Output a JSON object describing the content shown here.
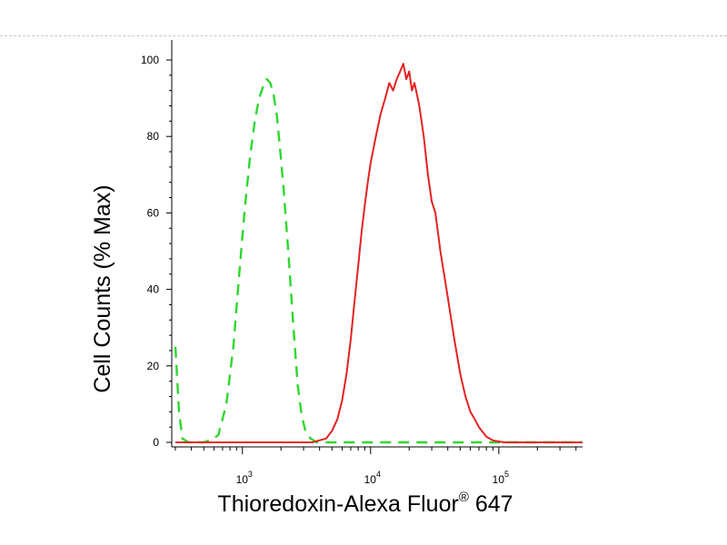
{
  "chart_data": {
    "type": "line",
    "title": "",
    "xlabel": "Thioredoxin-Alexa Fluor",
    "xlabel_superscript": "®",
    "xlabel_suffix": " 647",
    "ylabel": "Cell Counts (% Max)",
    "xscale": "log",
    "xlim": [
      300,
      450000
    ],
    "ylim": [
      0,
      100
    ],
    "x_major_ticks": [
      {
        "value": 1000,
        "base": "10",
        "exp": "3"
      },
      {
        "value": 10000,
        "base": "10",
        "exp": "4"
      },
      {
        "value": 100000,
        "base": "10",
        "exp": "5"
      }
    ],
    "y_ticks": [
      0,
      20,
      40,
      60,
      80,
      100
    ],
    "grid": false,
    "legend": "none",
    "series": [
      {
        "color": "#2fd72f",
        "style": "dashed",
        "points": [
          [
            300,
            25
          ],
          [
            320,
            8
          ],
          [
            340,
            1
          ],
          [
            380,
            0
          ],
          [
            500,
            0
          ],
          [
            600,
            1
          ],
          [
            650,
            2
          ],
          [
            750,
            10
          ],
          [
            850,
            25
          ],
          [
            950,
            45
          ],
          [
            1050,
            62
          ],
          [
            1150,
            75
          ],
          [
            1250,
            84
          ],
          [
            1350,
            90
          ],
          [
            1450,
            93
          ],
          [
            1550,
            95
          ],
          [
            1650,
            94
          ],
          [
            1750,
            91
          ],
          [
            1850,
            86
          ],
          [
            1950,
            78
          ],
          [
            2100,
            66
          ],
          [
            2300,
            48
          ],
          [
            2500,
            30
          ],
          [
            2700,
            15
          ],
          [
            2900,
            7
          ],
          [
            3100,
            3
          ],
          [
            3400,
            1
          ],
          [
            3800,
            0
          ],
          [
            450000,
            0
          ]
        ]
      },
      {
        "color": "#e32222",
        "style": "solid",
        "points": [
          [
            300,
            0
          ],
          [
            2000,
            0
          ],
          [
            3500,
            0
          ],
          [
            4500,
            1
          ],
          [
            5000,
            3
          ],
          [
            5500,
            6
          ],
          [
            6000,
            11
          ],
          [
            6500,
            18
          ],
          [
            7000,
            27
          ],
          [
            7500,
            37
          ],
          [
            8000,
            46
          ],
          [
            8500,
            55
          ],
          [
            9000,
            62
          ],
          [
            9500,
            68
          ],
          [
            10000,
            73
          ],
          [
            11000,
            80
          ],
          [
            12000,
            86
          ],
          [
            13000,
            90
          ],
          [
            14000,
            94
          ],
          [
            15000,
            92
          ],
          [
            16000,
            95
          ],
          [
            17000,
            97
          ],
          [
            18000,
            99
          ],
          [
            19000,
            95
          ],
          [
            20000,
            97
          ],
          [
            21000,
            92
          ],
          [
            22000,
            94
          ],
          [
            23000,
            91
          ],
          [
            24000,
            88
          ],
          [
            26000,
            80
          ],
          [
            28000,
            70
          ],
          [
            30000,
            63
          ],
          [
            32000,
            60
          ],
          [
            35000,
            50
          ],
          [
            40000,
            38
          ],
          [
            45000,
            27
          ],
          [
            50000,
            18
          ],
          [
            55000,
            12
          ],
          [
            60000,
            8
          ],
          [
            65000,
            6
          ],
          [
            70000,
            4
          ],
          [
            80000,
            1.5
          ],
          [
            90000,
            0.5
          ],
          [
            110000,
            0
          ],
          [
            450000,
            0
          ]
        ]
      }
    ]
  }
}
